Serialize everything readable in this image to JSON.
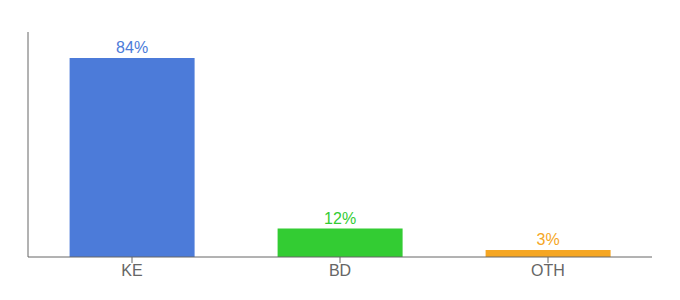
{
  "chart_data": {
    "type": "bar",
    "categories": [
      "KE",
      "BD",
      "OTH"
    ],
    "values": [
      84,
      12,
      3
    ],
    "value_labels": [
      "84%",
      "12%",
      "3%"
    ],
    "data_labels": true,
    "colors": [
      "#4c7bd9",
      "#33cc33",
      "#f5a623"
    ],
    "ylim": [
      0,
      95
    ],
    "tick_labels": "x",
    "grid": false
  }
}
